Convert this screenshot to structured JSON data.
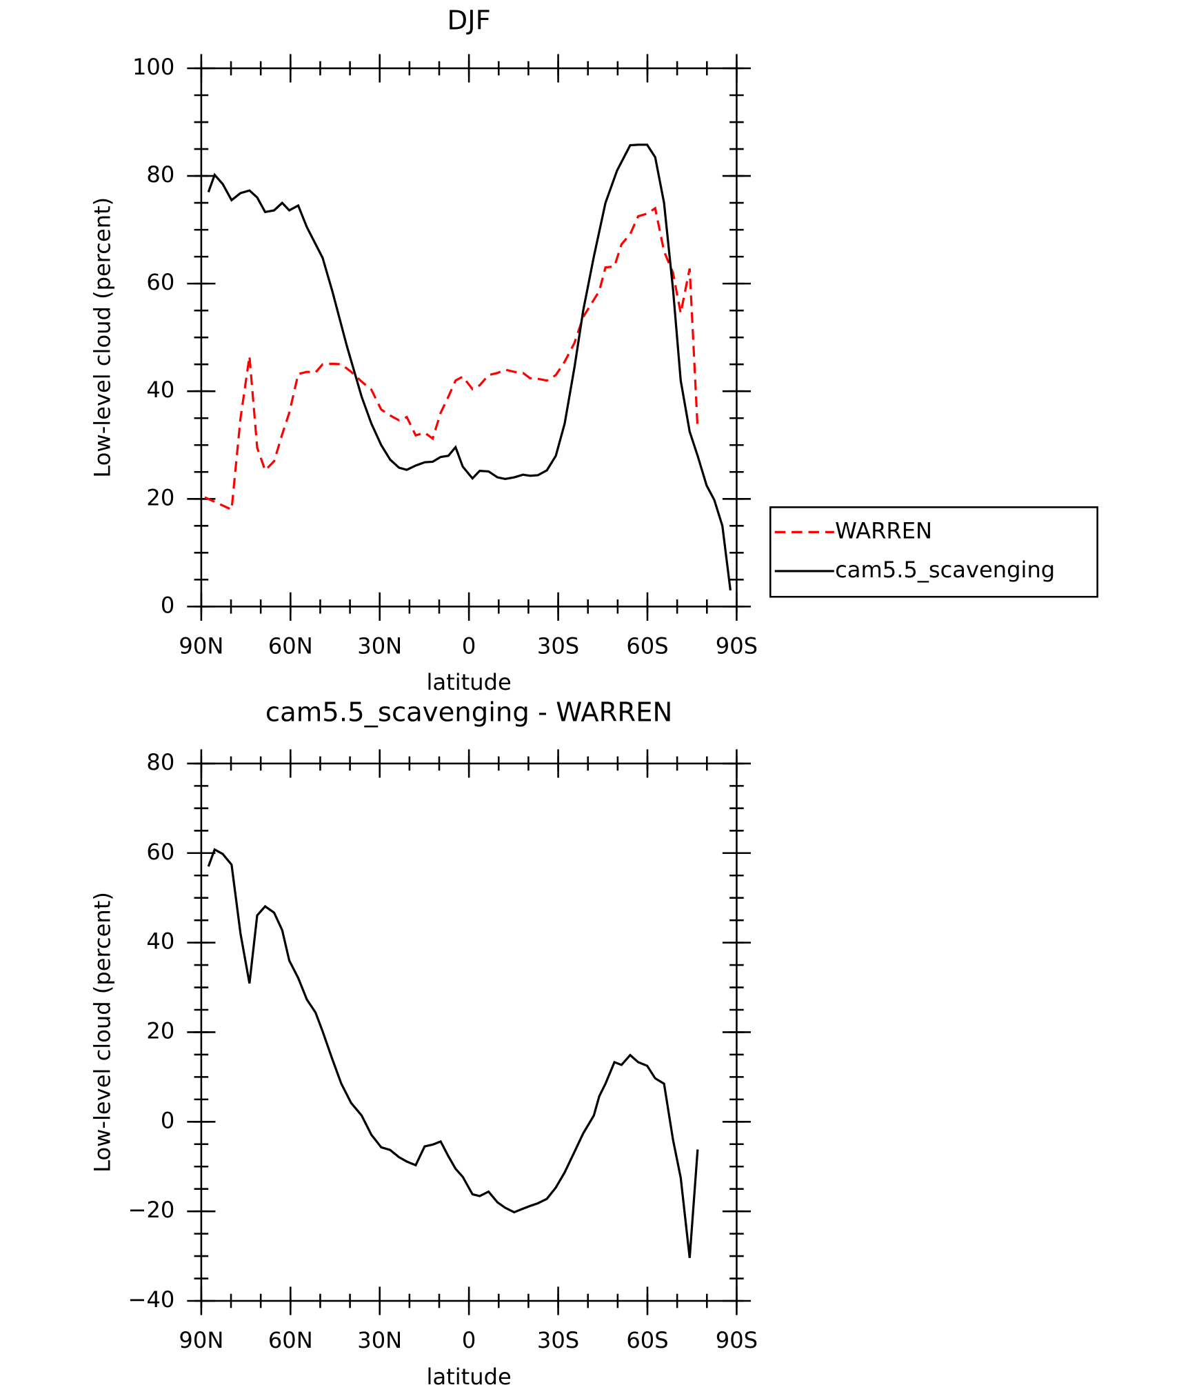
{
  "chart_data": [
    {
      "type": "line",
      "title": "DJF",
      "xlabel": "latitude",
      "ylabel": "Low-level cloud (percent)",
      "xlim": [
        90,
        -90
      ],
      "xticks": [
        {
          "value": 90,
          "label": "90N"
        },
        {
          "value": 60,
          "label": "60N"
        },
        {
          "value": 30,
          "label": "30N"
        },
        0,
        {
          "value": -30,
          "label": "30S"
        },
        {
          "value": -60,
          "label": "60S"
        },
        {
          "value": -90,
          "label": "90S"
        }
      ],
      "ylim": [
        0,
        100
      ],
      "yticks": [
        0,
        20,
        40,
        60,
        80,
        100
      ],
      "legend": "right",
      "series": [
        {
          "name": "WARREN",
          "color": "#ff0000",
          "dash": true,
          "x": [
            88.8,
            79.8,
            76.8,
            73.8,
            71.2,
            68.5,
            65.5,
            62.8,
            60.4,
            57.4,
            54.5,
            51.6,
            49.2,
            45.9,
            42.9,
            39.6,
            36.1,
            32.8,
            29.5,
            26.5,
            23.5,
            20.9,
            17.9,
            14.9,
            12.2,
            9.5,
            6.9,
            4.5,
            2.1,
            -1.2,
            -3.6,
            -6.6,
            -9.6,
            -12.2,
            -15.2,
            -18.2,
            -20.6,
            -23.2,
            -26.2,
            -29.2,
            -32.2,
            -35.5,
            -38.4,
            -42,
            -43.8,
            -45.9,
            -48.9,
            -51.3,
            -54.2,
            -56.9,
            -59.9,
            -62.6,
            -65.6,
            -68.6,
            -71.2,
            -74.2,
            -76.9
          ],
          "values": [
            20.3,
            18,
            35,
            46.5,
            29.5,
            25.3,
            27,
            32,
            36,
            43.2,
            43.6,
            43.5,
            45,
            45.1,
            45,
            43.6,
            41.8,
            40.3,
            36.6,
            35.5,
            34.6,
            35.2,
            31.8,
            32.3,
            31.2,
            36,
            39,
            42,
            42.7,
            40.4,
            41.1,
            43,
            43.4,
            44,
            43.6,
            43.4,
            42.4,
            42.3,
            42,
            43,
            45.5,
            49,
            53.8,
            57,
            58.6,
            63,
            63.2,
            67.3,
            69.2,
            72.5,
            73,
            74,
            66,
            62,
            54.5,
            62.8,
            33
          ]
        },
        {
          "name": "cam5.5_scavenging",
          "color": "#000000",
          "dash": false,
          "x": [
            87.6,
            85.5,
            82.8,
            79.8,
            76.8,
            73.8,
            71.2,
            68.5,
            65.5,
            62.8,
            60.4,
            57.4,
            54.5,
            49.2,
            45.9,
            41.1,
            36.1,
            32.8,
            29.5,
            26.5,
            23.5,
            20.9,
            17.9,
            14.9,
            12.2,
            9.5,
            6.9,
            4.5,
            2.1,
            -1.2,
            -3.6,
            -6.6,
            -9.6,
            -12.2,
            -15.2,
            -18.2,
            -20.6,
            -23.2,
            -26.2,
            -29.2,
            -32.2,
            -35.5,
            -38.4,
            -42,
            -45.9,
            -49.8,
            -54.2,
            -56.9,
            -59.9,
            -62.6,
            -65.6,
            -68.6,
            -71.2,
            -74.2,
            -76.9,
            -79.9,
            -82.5,
            -85.2,
            -87.9
          ],
          "values": [
            77,
            80.2,
            78.5,
            75.5,
            76.8,
            77.3,
            76,
            73.3,
            73.6,
            75,
            73.6,
            74.5,
            70.5,
            64.8,
            58.5,
            48.5,
            39,
            34,
            30,
            27.3,
            25.8,
            25.4,
            26.2,
            26.8,
            26.9,
            27.8,
            28,
            29.6,
            26,
            23.8,
            25.2,
            25.1,
            24,
            23.7,
            24,
            24.5,
            24.3,
            24.4,
            25.3,
            28,
            34,
            44.5,
            55,
            65,
            75,
            81,
            85.7,
            85.8,
            85.8,
            83.5,
            75,
            59,
            42,
            32.5,
            28,
            22.5,
            19.8,
            15,
            3
          ]
        }
      ]
    },
    {
      "type": "line",
      "title": "cam5.5_scavenging - WARREN",
      "xlabel": "latitude",
      "ylabel": "Low-level cloud (percent)",
      "xlim": [
        90,
        -90
      ],
      "xticks": [
        {
          "value": 90,
          "label": "90N"
        },
        {
          "value": 60,
          "label": "60N"
        },
        {
          "value": 30,
          "label": "30N"
        },
        0,
        {
          "value": -30,
          "label": "30S"
        },
        {
          "value": -60,
          "label": "60S"
        },
        {
          "value": -90,
          "label": "90S"
        }
      ],
      "ylim": [
        -40,
        80
      ],
      "yticks": [
        {
          "value": -40,
          "label": "−40"
        },
        {
          "value": -20,
          "label": "−20"
        },
        0,
        20,
        40,
        60,
        80
      ],
      "series": [
        {
          "color": "#000000",
          "dash": false,
          "x": [
            87.6,
            85.5,
            82.8,
            79.8,
            76.8,
            73.8,
            71.2,
            68.5,
            65.5,
            62.8,
            60.4,
            57.4,
            54.5,
            51.6,
            49.2,
            45.9,
            42.9,
            39.6,
            36.1,
            32.8,
            29.5,
            26.5,
            23.5,
            20.9,
            17.9,
            14.9,
            12.2,
            9.5,
            6.9,
            4.5,
            2.1,
            -1.2,
            -3.6,
            -6.6,
            -9.6,
            -12.2,
            -15.2,
            -18.2,
            -20.6,
            -23.2,
            -26.2,
            -29.2,
            -32.2,
            -35.5,
            -38.4,
            -42,
            -43.8,
            -45.9,
            -48.9,
            -51.3,
            -54.2,
            -56.9,
            -59.9,
            -62.6,
            -65.6,
            -68.6,
            -71.2,
            -74.2,
            -76.9
          ],
          "values": [
            57,
            60.8,
            59.8,
            57.4,
            42,
            30.9,
            46.1,
            48.1,
            46.7,
            42.8,
            36,
            32.1,
            27.3,
            24.4,
            20.2,
            13.9,
            8.5,
            4.2,
            1.4,
            -2.9,
            -5.7,
            -6.3,
            -7.9,
            -8.9,
            -9.7,
            -5.5,
            -5.1,
            -4.4,
            -7.7,
            -10.5,
            -12.3,
            -16.2,
            -16.6,
            -15.6,
            -18,
            -19.2,
            -20.2,
            -19.4,
            -18.8,
            -18.2,
            -17.2,
            -14.7,
            -11.3,
            -6.7,
            -2.6,
            1.4,
            5.7,
            8.5,
            13.3,
            12.7,
            14.9,
            13.3,
            12.5,
            9.7,
            8.5,
            -4,
            -12.5,
            -30.4,
            -6.2
          ]
        }
      ]
    }
  ]
}
